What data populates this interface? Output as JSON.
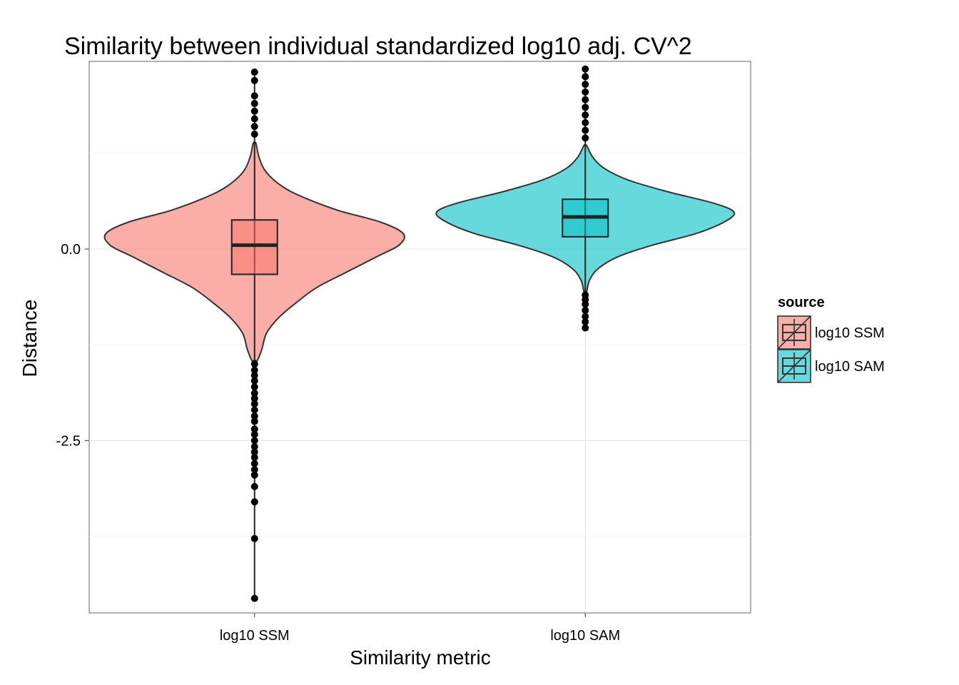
{
  "chart_data": {
    "type": "violin",
    "title": "Similarity between individual standardized log10 adj. CV^2",
    "xlabel": "Similarity metric",
    "ylabel": "Distance",
    "categories": [
      "log10 SSM",
      "log10 SAM"
    ],
    "ylim": [
      -4.75,
      2.45
    ],
    "y_ticks": [
      -2.5,
      0.0
    ],
    "y_tick_labels": [
      "-2.5",
      "0.0"
    ],
    "grid": true,
    "legend": {
      "title": "source",
      "placement": "right",
      "entries": [
        {
          "label": "log10 SSM",
          "color": "#F8766D"
        },
        {
          "label": "log10 SAM",
          "color": "#00BFC4"
        }
      ]
    },
    "series": [
      {
        "category": "log10 SSM",
        "color": "#F8766D",
        "box": {
          "min": -1.45,
          "q1": -0.33,
          "median": 0.05,
          "q3": 0.38,
          "max": 1.38
        },
        "outliers": [
          -4.56,
          -3.78,
          -3.3,
          -3.1,
          -2.95,
          -2.88,
          -2.8,
          -2.72,
          -2.65,
          -2.58,
          -2.5,
          -2.42,
          -2.35,
          -2.25,
          -2.18,
          -2.1,
          -2.02,
          -1.95,
          -1.88,
          -1.8,
          -1.72,
          -1.65,
          -1.58,
          -1.5,
          1.5,
          1.6,
          1.7,
          1.8,
          1.9,
          2.0,
          2.2,
          2.31
        ],
        "density": [
          [
            -1.45,
            0.02
          ],
          [
            -1.3,
            0.05
          ],
          [
            -1.1,
            0.08
          ],
          [
            -0.9,
            0.16
          ],
          [
            -0.7,
            0.28
          ],
          [
            -0.5,
            0.42
          ],
          [
            -0.3,
            0.62
          ],
          [
            -0.1,
            0.82
          ],
          [
            0.05,
            0.97
          ],
          [
            0.2,
            1.0
          ],
          [
            0.35,
            0.85
          ],
          [
            0.5,
            0.57
          ],
          [
            0.65,
            0.36
          ],
          [
            0.8,
            0.2
          ],
          [
            1.0,
            0.08
          ],
          [
            1.2,
            0.03
          ],
          [
            1.38,
            0.01
          ]
        ]
      },
      {
        "category": "log10 SAM",
        "color": "#00BFC4",
        "box": {
          "min": -0.55,
          "q1": 0.16,
          "median": 0.42,
          "q3": 0.65,
          "max": 1.35
        },
        "outliers": [
          -1.03,
          -0.95,
          -0.88,
          -0.8,
          -0.72,
          -0.66,
          -0.6,
          1.45,
          1.55,
          1.65,
          1.75,
          1.85,
          1.95,
          2.05,
          2.15,
          2.25,
          2.35
        ],
        "density": [
          [
            -0.55,
            0.01
          ],
          [
            -0.4,
            0.03
          ],
          [
            -0.25,
            0.09
          ],
          [
            -0.1,
            0.22
          ],
          [
            0.05,
            0.45
          ],
          [
            0.2,
            0.74
          ],
          [
            0.35,
            0.93
          ],
          [
            0.48,
            1.0
          ],
          [
            0.6,
            0.86
          ],
          [
            0.75,
            0.55
          ],
          [
            0.9,
            0.29
          ],
          [
            1.05,
            0.13
          ],
          [
            1.2,
            0.05
          ],
          [
            1.35,
            0.01
          ]
        ]
      }
    ]
  }
}
